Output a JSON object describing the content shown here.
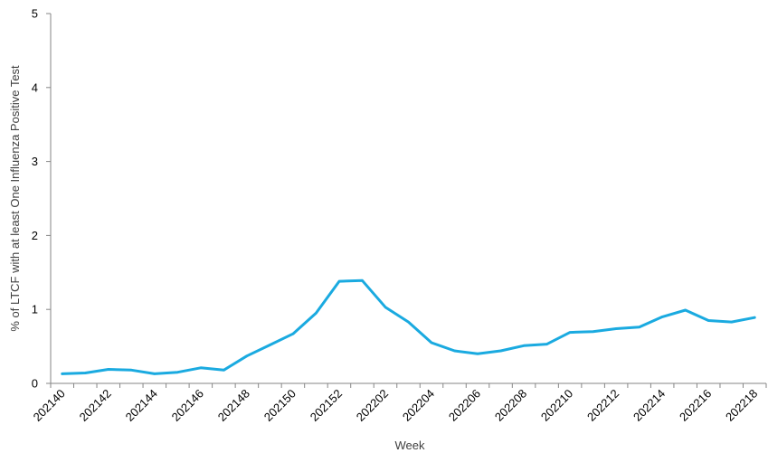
{
  "chart_data": {
    "type": "line",
    "title": "",
    "xlabel": "Week",
    "ylabel": "% of LTCF with at least One Influenza Positive Test",
    "ylim": [
      0,
      5
    ],
    "yticks": [
      "0",
      "1",
      "2",
      "3",
      "4",
      "5"
    ],
    "grid": false,
    "legend": "none",
    "x": [
      "202140",
      "202141",
      "202142",
      "202143",
      "202144",
      "202145",
      "202146",
      "202147",
      "202148",
      "202149",
      "202150",
      "202151",
      "202152",
      "202201",
      "202202",
      "202203",
      "202204",
      "202205",
      "202206",
      "202207",
      "202208",
      "202209",
      "202210",
      "202211",
      "202212",
      "202213",
      "202214",
      "202215",
      "202216",
      "202217",
      "202218"
    ],
    "xtick_labels": [
      "202140",
      "202142",
      "202144",
      "202146",
      "202148",
      "202150",
      "202152",
      "202202",
      "202204",
      "202206",
      "202208",
      "202210",
      "202212",
      "202214",
      "202216",
      "202218"
    ],
    "series": [
      {
        "color": "#1aaae0",
        "values": [
          0.13,
          0.14,
          0.19,
          0.18,
          0.13,
          0.15,
          0.21,
          0.18,
          0.37,
          0.52,
          0.67,
          0.95,
          1.38,
          1.39,
          1.03,
          0.83,
          0.55,
          0.44,
          0.4,
          0.44,
          0.51,
          0.53,
          0.69,
          0.7,
          0.74,
          0.76,
          0.9,
          0.99,
          0.85,
          0.83,
          0.89
        ]
      }
    ]
  }
}
